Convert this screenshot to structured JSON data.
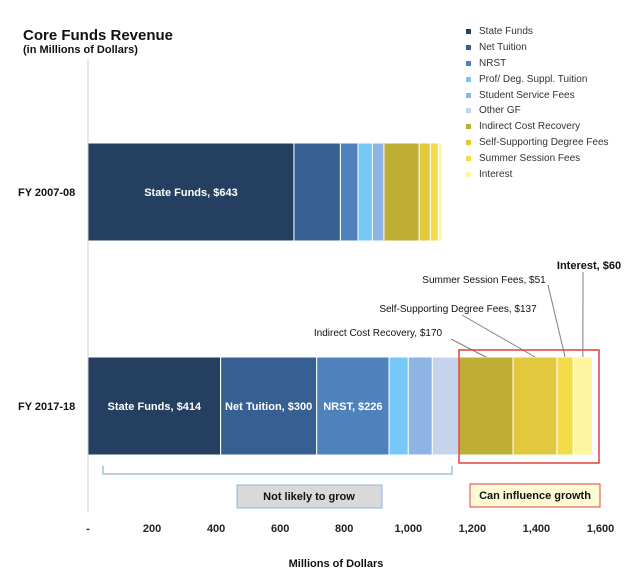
{
  "header": {
    "title": "Core Funds Revenue",
    "subtitle": "(in Millions of Dollars)"
  },
  "chart_data": {
    "type": "bar",
    "orientation": "horizontal",
    "stacked": true,
    "xlabel": "Millions of Dollars",
    "xlim": [
      0,
      1600
    ],
    "xticks": [
      "-",
      "200",
      "400",
      "600",
      "800",
      "1,000",
      "1,200",
      "1,400",
      "1,600"
    ],
    "categories": [
      "FY 2007-08",
      "FY 2017-18"
    ],
    "series": [
      {
        "name": "State Funds",
        "color": "#243F60",
        "values": [
          643,
          414
        ]
      },
      {
        "name": "Net Tuition",
        "color": "#376092",
        "values": [
          145,
          300
        ]
      },
      {
        "name": "NRST",
        "color": "#4F81BD",
        "values": [
          55,
          226
        ]
      },
      {
        "name": "Prof/ Deg. Suppl. Tuition",
        "color": "#75C8F8",
        "values": [
          45,
          60
        ]
      },
      {
        "name": "Student Service Fees",
        "color": "#8EB4E3",
        "values": [
          36,
          75
        ]
      },
      {
        "name": "Other GF",
        "color": "#C5D3EC",
        "values": [
          0,
          82
        ]
      },
      {
        "name": "Indirect Cost Recovery",
        "color": "#BFAE35",
        "values": [
          110,
          170
        ]
      },
      {
        "name": "Self-Supporting Degree Fees",
        "color": "#E3C83E",
        "values": [
          35,
          137
        ]
      },
      {
        "name": "Summer Session Fees",
        "color": "#F3DB4A",
        "values": [
          25,
          51
        ]
      },
      {
        "name": "Interest",
        "color": "#FFF5A0",
        "values": [
          12,
          60
        ]
      }
    ],
    "bar_labels": [
      {
        "category": "FY 2007-08",
        "series": "State Funds",
        "text": "State Funds, $643"
      },
      {
        "category": "FY 2017-18",
        "series": "State Funds",
        "text": "State Funds, $414"
      },
      {
        "category": "FY 2017-18",
        "series": "Net Tuition",
        "text": "Net Tuition, $300"
      },
      {
        "category": "FY 2017-18",
        "series": "NRST",
        "text": "NRST, $226"
      }
    ],
    "callouts": [
      {
        "series": "Indirect Cost Recovery",
        "text": "Indirect Cost Recovery, $170"
      },
      {
        "series": "Self-Supporting Degree Fees",
        "text": "Self-Supporting Degree Fees, $137"
      },
      {
        "series": "Summer Session Fees",
        "text": "Summer Session Fees, $51"
      },
      {
        "series": "Interest",
        "text": "Interest, $60"
      }
    ],
    "annotations": {
      "not_likely": "Not likely to grow",
      "can_influence": "Can influence growth"
    }
  }
}
